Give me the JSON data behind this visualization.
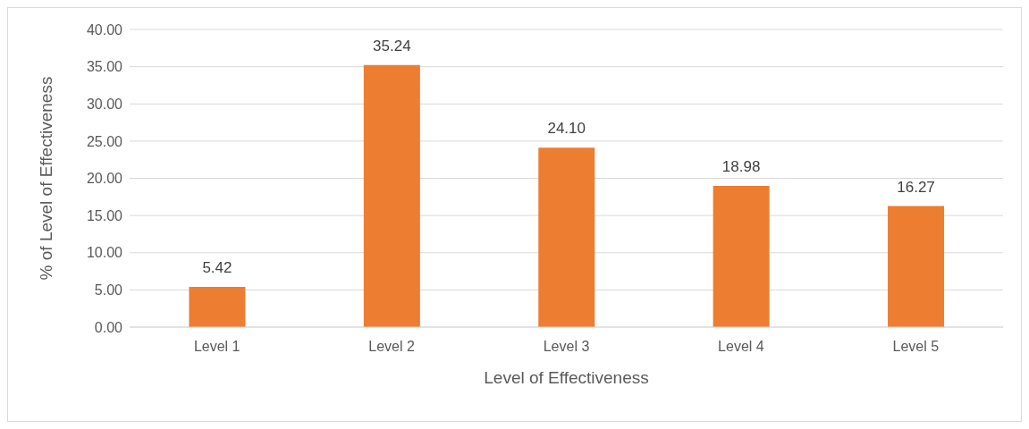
{
  "chart_data": {
    "type": "bar",
    "xlabel": "Level of Effectiveness",
    "ylabel": "% of Level of Effectiveness",
    "categories": [
      "Level 1",
      "Level 2",
      "Level 3",
      "Level 4",
      "Level 5"
    ],
    "values": [
      5.42,
      35.24,
      24.1,
      18.98,
      16.27
    ],
    "color": "#ed7d31",
    "ylim": [
      0,
      40
    ],
    "yticks": [
      {
        "value": 0,
        "label": "0.00"
      },
      {
        "value": 5,
        "label": "5.00"
      },
      {
        "value": 10,
        "label": "10.00"
      },
      {
        "value": 15,
        "label": "15.00"
      },
      {
        "value": 20,
        "label": "20.00"
      },
      {
        "value": 25,
        "label": "25.00"
      },
      {
        "value": 30,
        "label": "30.00"
      },
      {
        "value": 35,
        "label": "35.00"
      },
      {
        "value": 40,
        "label": "40.00"
      }
    ],
    "value_labels": [
      "5.42",
      "35.24",
      "24.10",
      "18.98",
      "16.27"
    ],
    "grid": "y"
  }
}
